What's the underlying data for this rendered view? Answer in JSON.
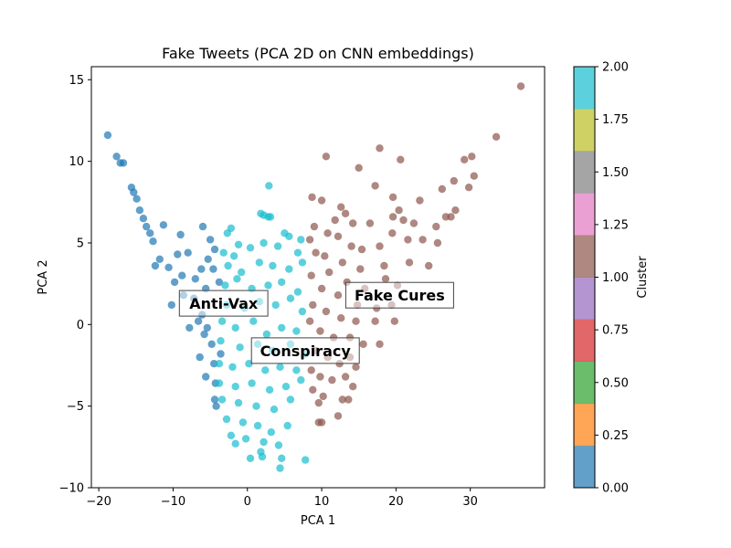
{
  "chart_data": {
    "type": "scatter",
    "title": "Fake Tweets (PCA 2D on CNN embeddings)",
    "xlabel": "PCA 1",
    "ylabel": "PCA 2",
    "xlim": [
      -21,
      40
    ],
    "ylim": [
      -10,
      15.8
    ],
    "x_ticks": [
      -20,
      -10,
      0,
      10,
      20,
      30
    ],
    "y_ticks": [
      -10,
      -5,
      0,
      5,
      10,
      15
    ],
    "x_tick_labels": [
      "−20",
      "−10",
      "0",
      "10",
      "20",
      "30"
    ],
    "y_tick_labels": [
      "−10",
      "−5",
      "0",
      "5",
      "10",
      "15"
    ],
    "grid": false,
    "point_alpha": 0.7,
    "series": [
      {
        "cluster": 0,
        "color": "#1f77b4",
        "points": [
          [
            -18.8,
            11.6
          ],
          [
            -17.6,
            10.3
          ],
          [
            -17.1,
            9.9
          ],
          [
            -16.7,
            9.9
          ],
          [
            -15.6,
            8.4
          ],
          [
            -15.3,
            8.1
          ],
          [
            -14.9,
            7.7
          ],
          [
            -14.5,
            7.0
          ],
          [
            -14.0,
            6.5
          ],
          [
            -13.6,
            6.0
          ],
          [
            -13.1,
            5.6
          ],
          [
            -12.7,
            5.1
          ],
          [
            -11.3,
            6.1
          ],
          [
            -9.0,
            5.5
          ],
          [
            -6.0,
            6.0
          ],
          [
            -5.0,
            5.2
          ],
          [
            -4.4,
            4.6
          ],
          [
            -5.3,
            4.0
          ],
          [
            -6.2,
            3.4
          ],
          [
            -7.0,
            2.8
          ],
          [
            -8.0,
            4.4
          ],
          [
            -9.4,
            4.3
          ],
          [
            -10.6,
            3.5
          ],
          [
            -9.8,
            2.6
          ],
          [
            -8.6,
            1.8
          ],
          [
            -7.2,
            1.6
          ],
          [
            -6.1,
            0.6
          ],
          [
            -5.4,
            -0.2
          ],
          [
            -4.8,
            -1.2
          ],
          [
            -4.5,
            -2.4
          ],
          [
            -4.3,
            -3.6
          ],
          [
            -4.4,
            -4.6
          ],
          [
            -4.2,
            -5.0
          ],
          [
            -5.8,
            -0.6
          ],
          [
            -6.6,
            0.2
          ],
          [
            -8.8,
            3.0
          ],
          [
            -10.2,
            1.2
          ],
          [
            -11.8,
            4.0
          ],
          [
            -12.4,
            3.6
          ],
          [
            -3.8,
            2.6
          ],
          [
            -4.6,
            3.4
          ],
          [
            -5.6,
            2.2
          ],
          [
            -7.8,
            -0.2
          ],
          [
            -6.4,
            -2.0
          ],
          [
            -5.6,
            -3.2
          ],
          [
            -3.6,
            -1.8
          ]
        ]
      },
      {
        "cluster": 1,
        "color": "#8c564b",
        "points": [
          [
            36.8,
            14.6
          ],
          [
            33.5,
            11.5
          ],
          [
            30.2,
            10.3
          ],
          [
            29.2,
            10.1
          ],
          [
            30.5,
            9.1
          ],
          [
            29.8,
            8.4
          ],
          [
            27.8,
            8.8
          ],
          [
            26.2,
            8.3
          ],
          [
            17.8,
            10.8
          ],
          [
            20.6,
            10.1
          ],
          [
            10.6,
            10.3
          ],
          [
            15.0,
            9.6
          ],
          [
            17.2,
            8.5
          ],
          [
            19.6,
            7.8
          ],
          [
            20.4,
            7.0
          ],
          [
            23.2,
            7.6
          ],
          [
            28.0,
            7.0
          ],
          [
            8.7,
            7.8
          ],
          [
            10.0,
            7.6
          ],
          [
            12.6,
            7.2
          ],
          [
            13.2,
            6.8
          ],
          [
            11.8,
            6.4
          ],
          [
            14.2,
            6.2
          ],
          [
            16.5,
            6.2
          ],
          [
            19.6,
            6.6
          ],
          [
            21.0,
            6.4
          ],
          [
            22.4,
            6.2
          ],
          [
            26.7,
            6.6
          ],
          [
            27.4,
            6.6
          ],
          [
            25.4,
            6.0
          ],
          [
            9.0,
            6.0
          ],
          [
            8.4,
            5.2
          ],
          [
            10.8,
            5.6
          ],
          [
            12.2,
            5.4
          ],
          [
            14.0,
            4.8
          ],
          [
            15.4,
            4.6
          ],
          [
            17.8,
            4.8
          ],
          [
            19.5,
            5.6
          ],
          [
            21.6,
            5.2
          ],
          [
            23.6,
            5.2
          ],
          [
            25.6,
            5.0
          ],
          [
            9.2,
            4.4
          ],
          [
            10.4,
            4.2
          ],
          [
            12.8,
            3.8
          ],
          [
            15.2,
            3.4
          ],
          [
            18.4,
            3.6
          ],
          [
            21.8,
            3.8
          ],
          [
            24.4,
            3.6
          ],
          [
            11.0,
            3.2
          ],
          [
            13.4,
            2.6
          ],
          [
            15.8,
            2.2
          ],
          [
            18.6,
            2.8
          ],
          [
            20.2,
            2.4
          ],
          [
            8.6,
            3.0
          ],
          [
            10.0,
            2.2
          ],
          [
            12.2,
            1.8
          ],
          [
            14.8,
            1.2
          ],
          [
            17.4,
            1.0
          ],
          [
            19.4,
            1.2
          ],
          [
            8.8,
            1.2
          ],
          [
            10.6,
            0.8
          ],
          [
            12.6,
            0.4
          ],
          [
            14.6,
            0.2
          ],
          [
            17.2,
            0.2
          ],
          [
            19.8,
            0.2
          ],
          [
            8.4,
            0.2
          ],
          [
            9.8,
            -0.4
          ],
          [
            11.6,
            -0.8
          ],
          [
            13.8,
            -0.8
          ],
          [
            15.6,
            -1.2
          ],
          [
            17.8,
            -1.2
          ],
          [
            9.2,
            -1.6
          ],
          [
            10.8,
            -2.0
          ],
          [
            12.4,
            -2.4
          ],
          [
            13.8,
            -2.0
          ],
          [
            8.6,
            -2.8
          ],
          [
            9.8,
            -3.2
          ],
          [
            11.4,
            -3.4
          ],
          [
            13.2,
            -3.2
          ],
          [
            14.6,
            -2.6
          ],
          [
            8.8,
            -4.0
          ],
          [
            10.2,
            -4.4
          ],
          [
            12.8,
            -4.6
          ],
          [
            13.6,
            -4.6
          ],
          [
            14.2,
            -3.8
          ],
          [
            9.6,
            -4.8
          ],
          [
            10.0,
            -6.0
          ],
          [
            9.6,
            -6.0
          ],
          [
            12.2,
            -5.6
          ]
        ]
      },
      {
        "cluster": 2,
        "color": "#17becf",
        "points": [
          [
            2.9,
            8.5
          ],
          [
            1.8,
            6.8
          ],
          [
            2.2,
            6.7
          ],
          [
            2.8,
            6.6
          ],
          [
            3.1,
            6.6
          ],
          [
            -2.2,
            5.9
          ],
          [
            -2.7,
            5.6
          ],
          [
            -1.2,
            4.9
          ],
          [
            0.4,
            4.7
          ],
          [
            -3.2,
            4.4
          ],
          [
            -1.8,
            4.2
          ],
          [
            2.2,
            5.0
          ],
          [
            4.1,
            4.8
          ],
          [
            5.0,
            5.6
          ],
          [
            5.6,
            5.4
          ],
          [
            6.8,
            4.4
          ],
          [
            7.2,
            5.2
          ],
          [
            -2.6,
            3.6
          ],
          [
            -0.8,
            3.2
          ],
          [
            1.6,
            3.8
          ],
          [
            3.4,
            3.6
          ],
          [
            5.6,
            3.4
          ],
          [
            7.4,
            3.8
          ],
          [
            -3.0,
            2.4
          ],
          [
            -1.4,
            2.8
          ],
          [
            0.6,
            2.2
          ],
          [
            2.8,
            2.4
          ],
          [
            4.6,
            2.6
          ],
          [
            6.8,
            2.0
          ],
          [
            -2.8,
            1.2
          ],
          [
            -0.4,
            1.0
          ],
          [
            1.6,
            1.4
          ],
          [
            3.8,
            1.2
          ],
          [
            5.8,
            1.6
          ],
          [
            7.4,
            0.8
          ],
          [
            -3.4,
            0.2
          ],
          [
            -1.6,
            -0.2
          ],
          [
            0.8,
            0.2
          ],
          [
            2.6,
            -0.6
          ],
          [
            4.6,
            -0.2
          ],
          [
            6.6,
            -0.4
          ],
          [
            -3.6,
            -1.0
          ],
          [
            -1.0,
            -1.4
          ],
          [
            1.4,
            -1.2
          ],
          [
            3.4,
            -1.6
          ],
          [
            5.8,
            -1.2
          ],
          [
            7.8,
            -1.8
          ],
          [
            -3.8,
            -2.4
          ],
          [
            -2.0,
            -2.6
          ],
          [
            0.2,
            -2.4
          ],
          [
            2.4,
            -2.8
          ],
          [
            4.4,
            -2.6
          ],
          [
            6.6,
            -2.8
          ],
          [
            -3.8,
            -3.6
          ],
          [
            -1.6,
            -3.8
          ],
          [
            0.6,
            -3.6
          ],
          [
            3.0,
            -4.0
          ],
          [
            5.2,
            -3.8
          ],
          [
            7.2,
            -3.4
          ],
          [
            -3.4,
            -4.6
          ],
          [
            -1.2,
            -4.8
          ],
          [
            1.2,
            -5.0
          ],
          [
            3.6,
            -5.2
          ],
          [
            5.8,
            -4.6
          ],
          [
            -2.8,
            -5.8
          ],
          [
            -0.6,
            -6.0
          ],
          [
            1.4,
            -6.2
          ],
          [
            3.2,
            -6.6
          ],
          [
            5.4,
            -6.2
          ],
          [
            -2.2,
            -6.8
          ],
          [
            -0.2,
            -7.0
          ],
          [
            2.2,
            -7.2
          ],
          [
            4.2,
            -7.4
          ],
          [
            0.4,
            -8.2
          ],
          [
            2.0,
            -8.1
          ],
          [
            4.6,
            -8.2
          ],
          [
            7.8,
            -8.3
          ],
          [
            4.4,
            -8.8
          ],
          [
            -1.6,
            -7.3
          ],
          [
            1.8,
            -7.8
          ]
        ]
      }
    ],
    "annotations": [
      {
        "text": "Anti-Vax",
        "x": -3.2,
        "y": 1.3
      },
      {
        "text": "Fake Cures",
        "x": 20.5,
        "y": 1.8
      },
      {
        "text": "Conspiracy",
        "x": 7.8,
        "y": -1.6
      }
    ],
    "colorbar": {
      "label": "Cluster",
      "min": 0,
      "max": 2,
      "ticks": [
        0.0,
        0.25,
        0.5,
        0.75,
        1.0,
        1.25,
        1.5,
        1.75,
        2.0
      ],
      "tick_labels": [
        "0.00",
        "0.25",
        "0.50",
        "0.75",
        "1.00",
        "1.25",
        "1.50",
        "1.75",
        "2.00"
      ],
      "colors": [
        "#1f77b4",
        "#ff7f0e",
        "#2ca02c",
        "#d62728",
        "#9467bd",
        "#8c564b",
        "#e377c2",
        "#7f7f7f",
        "#bcbd22",
        "#17becf"
      ]
    }
  }
}
